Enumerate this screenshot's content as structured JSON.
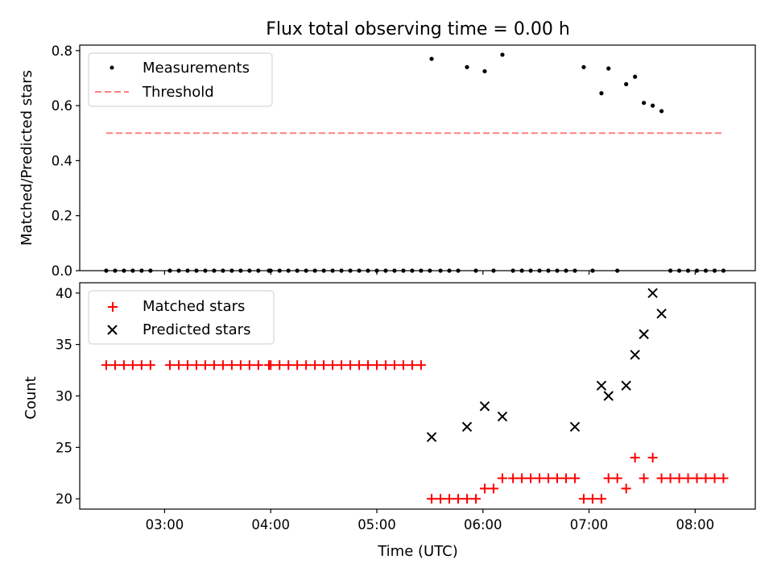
{
  "chart_data": [
    {
      "type": "scatter",
      "title": "Flux total observing time = 0.00 h",
      "xlabel": "",
      "ylabel": "Matched/Predicted stars",
      "xlim": [
        "02:12",
        "08:34"
      ],
      "ylim": [
        0,
        0.82
      ],
      "x_ticks": [
        "03:00",
        "04:00",
        "05:00",
        "06:00",
        "07:00",
        "08:00"
      ],
      "y_ticks": [
        0.0,
        0.2,
        0.4,
        0.6,
        0.8
      ],
      "y_tick_labels": [
        "0.0",
        "0.2",
        "0.4",
        "0.6",
        "0.8"
      ],
      "legend_position": "upper-left",
      "series": [
        {
          "name": "Measurements",
          "color": "#000000",
          "marker": "dot",
          "x": [
            "02:27",
            "02:32",
            "02:37",
            "02:42",
            "02:47",
            "02:52",
            "03:03",
            "03:08",
            "03:13",
            "03:18",
            "03:23",
            "03:28",
            "03:33",
            "03:38",
            "03:43",
            "03:48",
            "03:53",
            "03:59",
            "04:00",
            "04:05",
            "04:10",
            "04:15",
            "04:20",
            "04:25",
            "04:30",
            "04:35",
            "04:40",
            "04:45",
            "04:50",
            "04:55",
            "05:00",
            "05:05",
            "05:10",
            "05:15",
            "05:20",
            "05:25",
            "05:30",
            "05:31",
            "05:36",
            "05:41",
            "05:46",
            "05:51",
            "05:56",
            "06:01",
            "06:06",
            "06:11",
            "06:17",
            "06:22",
            "06:27",
            "06:32",
            "06:37",
            "06:42",
            "06:47",
            "06:52",
            "06:57",
            "07:02",
            "07:07",
            "07:11",
            "07:16",
            "07:21",
            "07:26",
            "07:31",
            "07:36",
            "07:41",
            "07:46",
            "07:51",
            "07:56",
            "08:01",
            "08:06",
            "08:11",
            "08:16"
          ],
          "y": [
            0,
            0,
            0,
            0,
            0,
            0,
            0,
            0,
            0,
            0,
            0,
            0,
            0,
            0,
            0,
            0,
            0,
            0,
            0,
            0,
            0,
            0,
            0,
            0,
            0,
            0,
            0,
            0,
            0,
            0,
            0,
            0,
            0,
            0,
            0,
            0,
            0,
            0.77,
            0,
            0,
            0,
            0.74,
            0,
            0.725,
            0,
            0.785,
            0,
            0,
            0,
            0,
            0,
            0,
            0,
            0,
            0.74,
            0,
            0.645,
            0.735,
            0,
            0.678,
            0.705,
            0.61,
            0.6,
            0.58,
            0,
            0,
            0,
            0,
            0,
            0,
            0
          ]
        },
        {
          "name": "Threshold",
          "color": "#ff7f7f",
          "style": "dashed",
          "x": [
            "02:27",
            "08:16"
          ],
          "y": [
            0.5,
            0.5
          ]
        }
      ]
    },
    {
      "type": "scatter",
      "title": "",
      "xlabel": "Time (UTC)",
      "ylabel": "Count",
      "xlim": [
        "02:12",
        "08:34"
      ],
      "ylim": [
        19,
        41
      ],
      "x_ticks": [
        "03:00",
        "04:00",
        "05:00",
        "06:00",
        "07:00",
        "08:00"
      ],
      "y_ticks": [
        20,
        25,
        30,
        35,
        40
      ],
      "y_tick_labels": [
        "20",
        "25",
        "30",
        "35",
        "40"
      ],
      "legend_position": "upper-left",
      "series": [
        {
          "name": "Matched stars",
          "color": "#ff0000",
          "marker": "plus",
          "x": [
            "02:27",
            "02:32",
            "02:37",
            "02:42",
            "02:47",
            "02:52",
            "03:03",
            "03:08",
            "03:13",
            "03:18",
            "03:23",
            "03:28",
            "03:33",
            "03:38",
            "03:43",
            "03:48",
            "03:53",
            "03:59",
            "04:00",
            "04:05",
            "04:10",
            "04:15",
            "04:20",
            "04:25",
            "04:30",
            "04:35",
            "04:40",
            "04:45",
            "04:50",
            "04:55",
            "05:00",
            "05:05",
            "05:10",
            "05:15",
            "05:20",
            "05:25",
            "05:31",
            "05:36",
            "05:41",
            "05:46",
            "05:51",
            "05:56",
            "06:01",
            "06:06",
            "06:11",
            "06:17",
            "06:22",
            "06:27",
            "06:32",
            "06:37",
            "06:42",
            "06:47",
            "06:52",
            "06:57",
            "07:02",
            "07:07",
            "07:11",
            "07:16",
            "07:21",
            "07:26",
            "07:31",
            "07:36",
            "07:41",
            "07:46",
            "07:51",
            "07:56",
            "08:01",
            "08:06",
            "08:11",
            "08:16"
          ],
          "y": [
            33,
            33,
            33,
            33,
            33,
            33,
            33,
            33,
            33,
            33,
            33,
            33,
            33,
            33,
            33,
            33,
            33,
            33,
            33,
            33,
            33,
            33,
            33,
            33,
            33,
            33,
            33,
            33,
            33,
            33,
            33,
            33,
            33,
            33,
            33,
            33,
            20,
            20,
            20,
            20,
            20,
            20,
            21,
            21,
            22,
            22,
            22,
            22,
            22,
            22,
            22,
            22,
            22,
            20,
            20,
            20,
            22,
            22,
            21,
            24,
            22,
            24,
            22,
            22,
            22,
            22,
            22,
            22,
            22,
            22
          ]
        },
        {
          "name": "Predicted stars",
          "color": "#000000",
          "marker": "x",
          "x": [
            "05:31",
            "05:51",
            "06:01",
            "06:11",
            "06:52",
            "07:07",
            "07:11",
            "07:21",
            "07:26",
            "07:31",
            "07:36",
            "07:41"
          ],
          "y": [
            26,
            27,
            29,
            28,
            27,
            31,
            30,
            31,
            34,
            36,
            40,
            38
          ]
        }
      ]
    }
  ]
}
